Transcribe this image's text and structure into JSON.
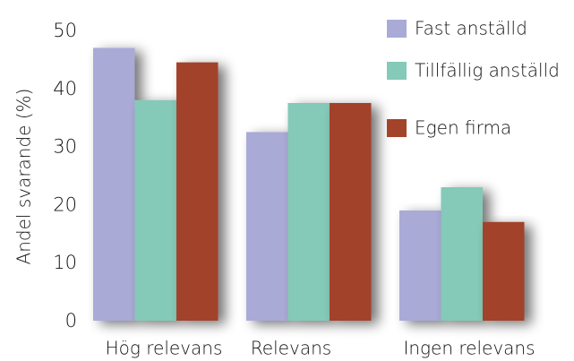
{
  "chart_data": {
    "type": "bar",
    "title": "",
    "xlabel": "",
    "ylabel": "Andel svarande (%)",
    "ylim": [
      0,
      50
    ],
    "yticks": [
      0,
      10,
      20,
      30,
      40,
      50
    ],
    "grid": true,
    "legend_position": "top-right",
    "categories": [
      "Hög relevans",
      "Relevans",
      "Ingen relevans"
    ],
    "series": [
      {
        "name": "Fast anställd",
        "color": "#aaaad6",
        "values": [
          47,
          32.5,
          19
        ]
      },
      {
        "name": "Tillfällig anställd",
        "color": "#85c9b8",
        "values": [
          38,
          37.5,
          23
        ]
      },
      {
        "name": "Egen firma",
        "color": "#a3432a",
        "values": [
          44.5,
          37.5,
          17
        ]
      }
    ]
  }
}
